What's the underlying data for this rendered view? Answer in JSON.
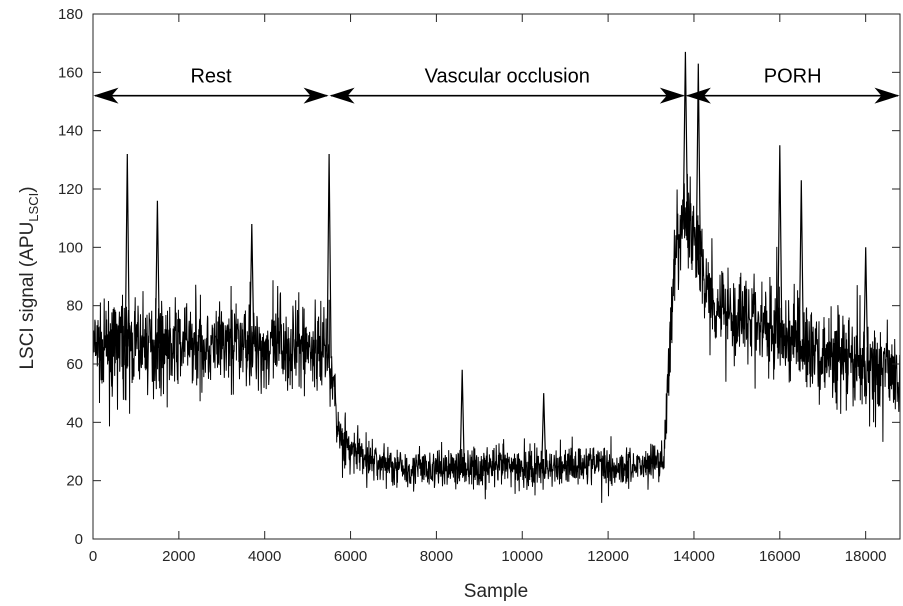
{
  "chart_data": {
    "type": "line",
    "title": "",
    "xlabel": "Sample",
    "ylabel": {
      "prefix": "LSCI signal (APU",
      "subscript": "LSCI",
      "suffix": ")"
    },
    "xlim": [
      0,
      18800
    ],
    "ylim": [
      0,
      180
    ],
    "xticks": [
      0,
      2000,
      4000,
      6000,
      8000,
      10000,
      12000,
      14000,
      16000,
      18000
    ],
    "yticks": [
      0,
      20,
      40,
      60,
      80,
      100,
      120,
      140,
      160,
      180
    ],
    "grid": false,
    "line_color": "#000000",
    "series": [
      {
        "x": [
          0,
          500,
          1000,
          1500,
          2000,
          2500,
          3000,
          3500,
          4000,
          4500,
          5000,
          5400,
          5550,
          5700,
          6000,
          6500,
          7000,
          7500,
          8000,
          8500,
          9000,
          9500,
          10000,
          10500,
          11000,
          11500,
          12000,
          12500,
          13000,
          13300,
          13450,
          13600,
          13800,
          14000,
          14200,
          14500,
          15000,
          15500,
          16000,
          16500,
          17000,
          17500,
          18000,
          18500,
          18800
        ],
        "y": [
          65,
          66,
          66,
          67,
          67,
          67,
          66,
          68,
          65,
          66,
          65,
          66,
          60,
          38,
          30,
          27,
          25,
          24,
          24,
          25,
          24,
          25,
          24,
          24,
          25,
          26,
          25,
          25,
          26,
          28,
          70,
          98,
          112,
          105,
          90,
          82,
          77,
          74,
          70,
          67,
          63,
          61,
          59,
          58,
          57
        ],
        "spread": [
          20,
          21,
          21,
          21,
          21,
          21,
          21,
          21,
          21,
          21,
          21,
          21,
          18,
          12,
          10,
          10,
          10,
          10,
          10,
          10,
          10,
          10,
          10,
          10,
          10,
          10,
          10,
          10,
          10,
          10,
          18,
          22,
          24,
          22,
          22,
          22,
          22,
          22,
          21,
          21,
          21,
          21,
          21,
          21,
          21
        ],
        "spikes": [
          [
            800,
            132
          ],
          [
            1500,
            116
          ],
          [
            3700,
            108
          ],
          [
            5500,
            132
          ],
          [
            8600,
            58
          ],
          [
            10500,
            50
          ],
          [
            13800,
            167
          ],
          [
            14100,
            163
          ],
          [
            16000,
            135
          ],
          [
            16500,
            123
          ],
          [
            18000,
            100
          ]
        ]
      }
    ],
    "annotations": [
      {
        "label": "Rest",
        "x_start": 0,
        "x_end": 5500,
        "y": 152
      },
      {
        "label": "Vascular occlusion",
        "x_start": 5500,
        "x_end": 13800,
        "y": 152
      },
      {
        "label": "PORH",
        "x_start": 13800,
        "x_end": 18800,
        "y": 152
      }
    ]
  }
}
